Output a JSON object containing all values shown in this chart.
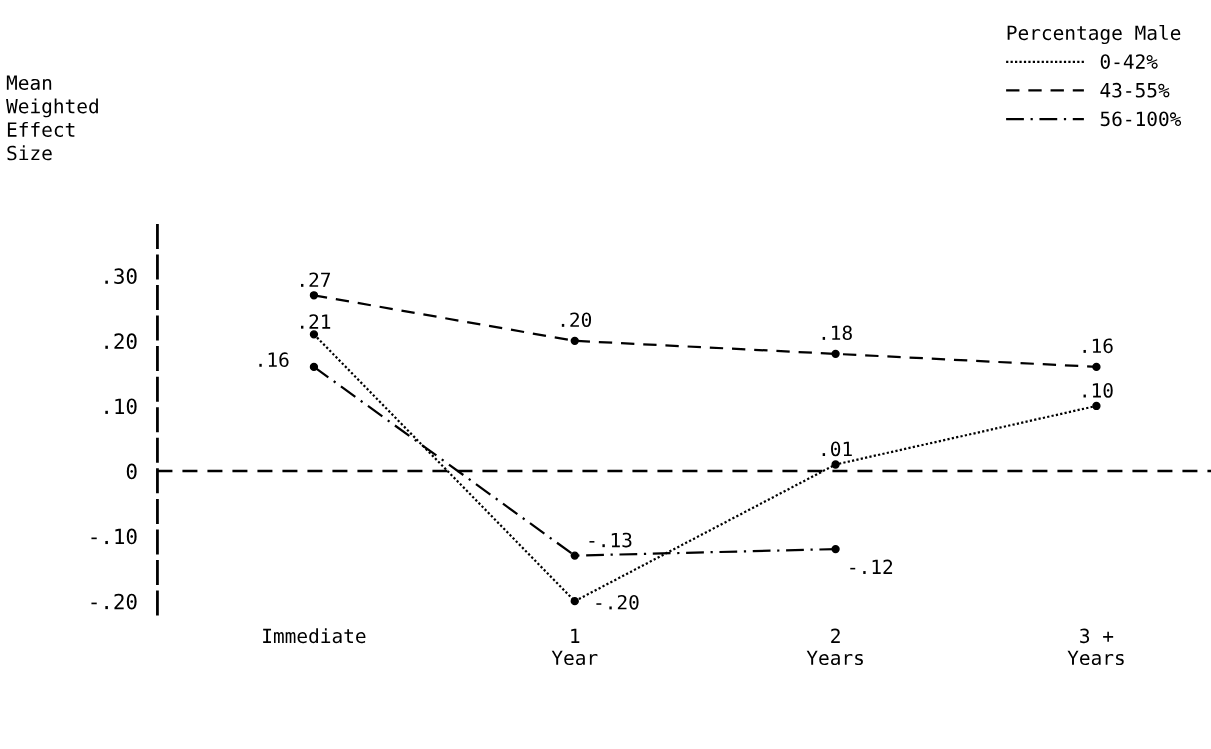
{
  "chart_data": {
    "type": "line",
    "ylabel": "Mean\nWeighted\nEffect\nSize",
    "legend_title": "Percentage Male",
    "categories": [
      "Immediate",
      "1\nYear",
      "2\nYears",
      "3 +\nYears"
    ],
    "series": [
      {
        "name": "0-42%",
        "color": "#000000",
        "line_style": "dotted",
        "values": [
          0.21,
          -0.2,
          0.01,
          0.1
        ],
        "value_labels": [
          ".21",
          "-.20",
          ".01",
          ".10"
        ]
      },
      {
        "name": "43-55%",
        "color": "#000000",
        "line_style": "dashed",
        "values": [
          0.27,
          0.2,
          0.18,
          0.16
        ],
        "value_labels": [
          ".27",
          ".20",
          ".18",
          ".16"
        ]
      },
      {
        "name": "56-100%",
        "color": "#000000",
        "line_style": "dashdot",
        "values": [
          0.16,
          -0.13,
          -0.12,
          null
        ],
        "value_labels": [
          ".16",
          "-.13",
          "-.12",
          null
        ]
      }
    ],
    "ylim": [
      -0.22,
      0.39
    ],
    "yticks": [
      {
        "value": 0.3,
        "label": ".30"
      },
      {
        "value": 0.2,
        "label": ".20"
      },
      {
        "value": 0.1,
        "label": ".10"
      },
      0,
      {
        "value": -0.1,
        "label": "-.10"
      },
      {
        "value": -0.2,
        "label": "-.20"
      }
    ],
    "ref_lines": [
      {
        "axis": "y",
        "value": 0,
        "color": "#000000",
        "line_style": "dashed"
      }
    ],
    "marker": "circle",
    "legend": "top right",
    "grid": false
  }
}
